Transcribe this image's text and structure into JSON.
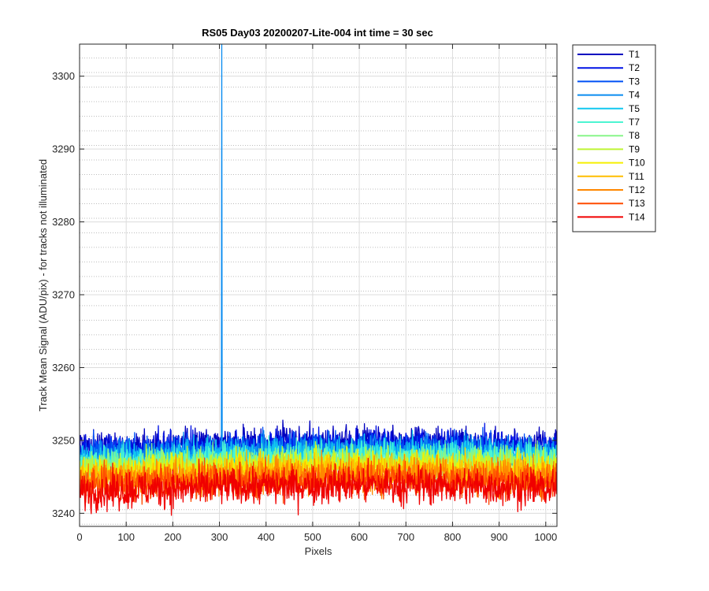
{
  "chart_data": {
    "type": "line",
    "title": "RS05 Day03 20200207-Lite-004 int time = 30 sec",
    "xlabel": "Pixels",
    "ylabel": "Track Mean Signal (ADU/pix) - for tracks not illuminated",
    "xlim": [
      0,
      1024
    ],
    "ylim": [
      3238.2,
      3304.4
    ],
    "x_ticks": [
      0,
      100,
      200,
      300,
      400,
      500,
      600,
      700,
      800,
      900,
      1000
    ],
    "y_ticks": [
      3240,
      3250,
      3260,
      3270,
      3280,
      3290,
      3300
    ],
    "grid": "major and minor",
    "legend_position": "outside-top-right",
    "x_sampling": "every pixel from 0 to 1023",
    "series": [
      {
        "name": "T1",
        "color": "#0000bf",
        "level": 3249.2,
        "noise": 1.1
      },
      {
        "name": "T2",
        "color": "#0012e6",
        "level": 3248.8,
        "noise": 1.1
      },
      {
        "name": "T3",
        "color": "#0050f5",
        "level": 3248.3,
        "noise": 1.1
      },
      {
        "name": "T4",
        "color": "#0a8cf0",
        "level": 3248.0,
        "noise": 1.1,
        "spike": {
          "x": 305,
          "y": 3304.4
        }
      },
      {
        "name": "T5",
        "color": "#12c8f0",
        "level": 3247.6,
        "noise": 1.1
      },
      {
        "name": "T7",
        "color": "#4cf5d2",
        "level": 3247.1,
        "noise": 1.1
      },
      {
        "name": "T8",
        "color": "#88f58a",
        "level": 3246.6,
        "noise": 1.1
      },
      {
        "name": "T9",
        "color": "#bff535",
        "level": 3246.2,
        "noise": 1.1
      },
      {
        "name": "T10",
        "color": "#f5ef00",
        "level": 3245.7,
        "noise": 1.15
      },
      {
        "name": "T11",
        "color": "#ffbe00",
        "level": 3245.2,
        "noise": 1.15
      },
      {
        "name": "T12",
        "color": "#ff8700",
        "level": 3244.7,
        "noise": 1.2
      },
      {
        "name": "T13",
        "color": "#ff4b00",
        "level": 3244.1,
        "noise": 1.2
      },
      {
        "name": "T14",
        "color": "#f00000",
        "level": 3243.3,
        "noise": 1.3
      }
    ]
  }
}
